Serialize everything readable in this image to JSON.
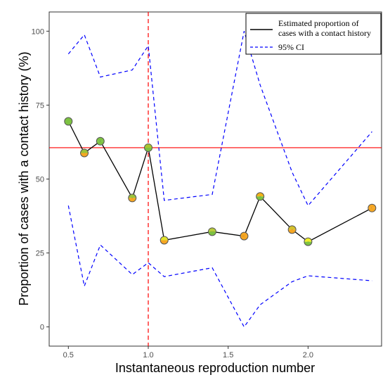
{
  "chart_data": {
    "type": "line",
    "xlabel": "Instantaneous reproduction number",
    "ylabel": "Proportion of cases with a contact history (%)",
    "xlim": [
      0.38,
      2.46
    ],
    "ylim": [
      -6.5,
      106.5
    ],
    "x_ticks": [
      0.5,
      1.0,
      1.5,
      2.0
    ],
    "x_tick_labels": [
      "0.5",
      "1.0",
      "1.5",
      "2.0"
    ],
    "y_ticks": [
      0,
      25,
      50,
      75,
      100
    ],
    "y_tick_labels": [
      "0",
      "25",
      "50",
      "75",
      "100"
    ],
    "grid": false,
    "legend_position": "top-right",
    "series": [
      {
        "name": "Estimated proportion of cases with a contact history",
        "style": "solid",
        "color": "#000000",
        "x": [
          0.5,
          0.6,
          0.7,
          0.9,
          1.0,
          1.1,
          1.4,
          1.6,
          1.7,
          1.9,
          2.0,
          2.4
        ],
        "y": [
          69.5,
          58.8,
          62.8,
          43.6,
          60.6,
          29.3,
          32.2,
          30.7,
          44.1,
          32.9,
          28.8,
          40.2
        ]
      },
      {
        "name": "95% CI",
        "style": "dashed",
        "color": "#0000ff",
        "x": [
          0.5,
          0.6,
          0.7,
          0.9,
          1.0,
          1.1,
          1.4,
          1.6,
          1.7,
          1.9,
          2.0,
          2.4
        ],
        "y": [
          92.3,
          98.8,
          84.5,
          86.9,
          95.1,
          42.8,
          44.8,
          100.0,
          81.8,
          52.3,
          41.0,
          66.0
        ]
      },
      {
        "name": "95% CI lower",
        "style": "dashed",
        "color": "#0000ff",
        "x": [
          0.5,
          0.6,
          0.7,
          0.9,
          1.0,
          1.1,
          1.4,
          1.6,
          1.7,
          1.9,
          2.0,
          2.4
        ],
        "y": [
          41.0,
          13.8,
          27.7,
          17.7,
          21.7,
          17.0,
          20.0,
          0.0,
          7.5,
          15.3,
          17.3,
          15.6
        ]
      }
    ],
    "point_colors": [
      "#7dc242",
      "#9bc33a",
      "#7dc242",
      "#9bc33a",
      "#a9c530",
      "#e2e32a",
      "#b9cc3c",
      "#f5a623",
      "#f1b31a",
      "#d4c12c",
      "#f0ee2a",
      "#f5a623"
    ],
    "reference_lines": {
      "horizontal_y": 60.6,
      "horizontal_color": "#ff0000",
      "vertical_x": 1.0,
      "vertical_color": "#ff0000"
    },
    "legend": {
      "line1": "Estimated proportion of",
      "line2": "cases with a contact history",
      "line3": "95% CI"
    }
  }
}
